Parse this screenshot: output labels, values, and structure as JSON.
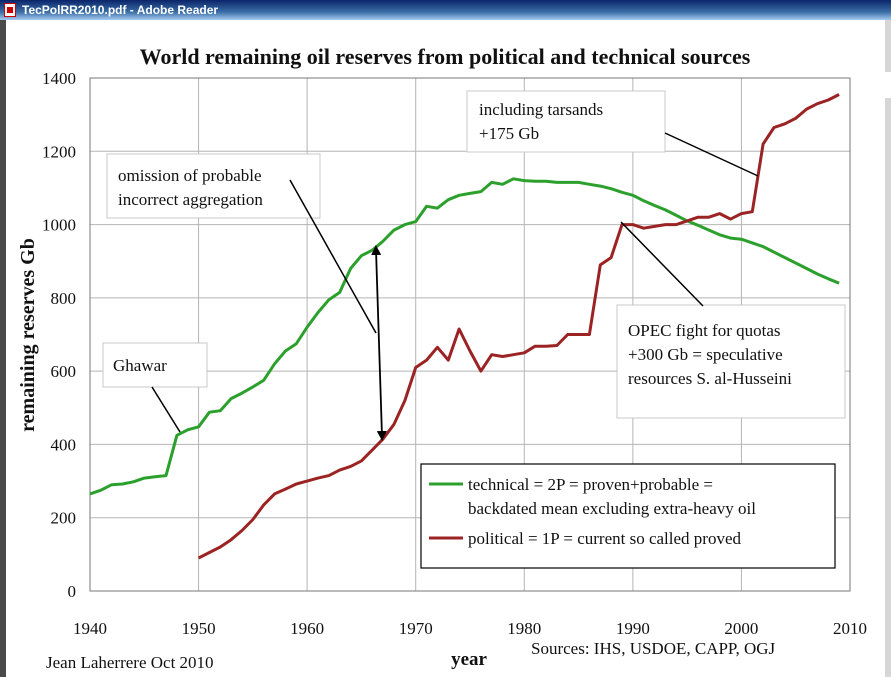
{
  "window": {
    "title": "TecPolRR2010.pdf - Adobe Reader",
    "icon": "pdf-document-icon"
  },
  "chart_data": {
    "type": "line",
    "title": "World remaining oil reserves from political and technical sources",
    "xlabel": "year",
    "ylabel": "remaining reserves Gb",
    "xlim": [
      1940,
      2010
    ],
    "ylim": [
      0,
      1400
    ],
    "xticks": [
      1940,
      1950,
      1960,
      1970,
      1980,
      1990,
      2000,
      2010
    ],
    "yticks": [
      0,
      200,
      400,
      600,
      800,
      1000,
      1200,
      1400
    ],
    "grid": true,
    "legend_position": "bottom-right",
    "series": [
      {
        "name": "technical = 2P = proven+probable = backdated mean excluding extra-heavy oil",
        "color": "#2ca02c",
        "x": [
          1940,
          1941,
          1942,
          1943,
          1944,
          1945,
          1946,
          1947,
          1948,
          1949,
          1950,
          1951,
          1952,
          1953,
          1954,
          1955,
          1956,
          1957,
          1958,
          1959,
          1960,
          1961,
          1962,
          1963,
          1964,
          1965,
          1966,
          1967,
          1968,
          1969,
          1970,
          1971,
          1972,
          1973,
          1974,
          1975,
          1976,
          1977,
          1978,
          1979,
          1980,
          1981,
          1982,
          1983,
          1984,
          1985,
          1986,
          1987,
          1988,
          1989,
          1990,
          1991,
          1992,
          1993,
          1994,
          1995,
          1996,
          1997,
          1998,
          1999,
          2000,
          2001,
          2002,
          2003,
          2004,
          2005,
          2006,
          2007,
          2008,
          2009
        ],
        "y": [
          265,
          275,
          290,
          292,
          298,
          308,
          312,
          315,
          425,
          440,
          448,
          488,
          492,
          525,
          540,
          557,
          575,
          620,
          655,
          675,
          720,
          760,
          795,
          815,
          880,
          915,
          930,
          955,
          985,
          1000,
          1008,
          1050,
          1045,
          1068,
          1080,
          1085,
          1090,
          1115,
          1110,
          1125,
          1120,
          1118,
          1118,
          1115,
          1115,
          1115,
          1110,
          1105,
          1098,
          1088,
          1080,
          1065,
          1052,
          1040,
          1025,
          1010,
          998,
          985,
          972,
          963,
          960,
          950,
          940,
          925,
          910,
          895,
          880,
          865,
          852,
          840
        ]
      },
      {
        "name": "political = 1P = current so called proved",
        "color": "#9b2323",
        "x": [
          1950,
          1951,
          1952,
          1953,
          1954,
          1955,
          1956,
          1957,
          1958,
          1959,
          1960,
          1961,
          1962,
          1963,
          1964,
          1965,
          1966,
          1967,
          1968,
          1969,
          1970,
          1971,
          1972,
          1973,
          1974,
          1975,
          1976,
          1977,
          1978,
          1979,
          1980,
          1981,
          1982,
          1983,
          1984,
          1985,
          1986,
          1987,
          1988,
          1989,
          1990,
          1991,
          1992,
          1993,
          1994,
          1995,
          1996,
          1997,
          1998,
          1999,
          2000,
          2001,
          2002,
          2003,
          2004,
          2005,
          2006,
          2007,
          2008,
          2009
        ],
        "y": [
          90,
          105,
          120,
          140,
          165,
          195,
          235,
          265,
          278,
          292,
          300,
          308,
          315,
          330,
          340,
          355,
          385,
          415,
          455,
          520,
          610,
          630,
          665,
          630,
          715,
          655,
          600,
          645,
          640,
          645,
          650,
          668,
          668,
          670,
          700,
          700,
          700,
          890,
          910,
          1000,
          1000,
          990,
          995,
          1000,
          1000,
          1010,
          1020,
          1020,
          1030,
          1015,
          1030,
          1035,
          1220,
          1265,
          1275,
          1290,
          1315,
          1330,
          1340,
          1355
        ]
      }
    ],
    "legend": [
      "technical = 2P = proven+probable =",
      "backdated mean excluding extra-heavy oil",
      "political = 1P = current so called proved"
    ],
    "annotations": {
      "ghawar": "Ghawar",
      "omission": [
        "omission of probable",
        "incorrect aggregation"
      ],
      "tarsands": [
        "including tarsands",
        "+175 Gb"
      ],
      "opec": [
        "OPEC fight for quotas",
        "+300 Gb = speculative",
        "resources S. al-Husseini"
      ]
    },
    "author": "Jean Laherrere Oct 2010",
    "sources": "Sources: IHS, USDOE, CAPP, OGJ"
  }
}
